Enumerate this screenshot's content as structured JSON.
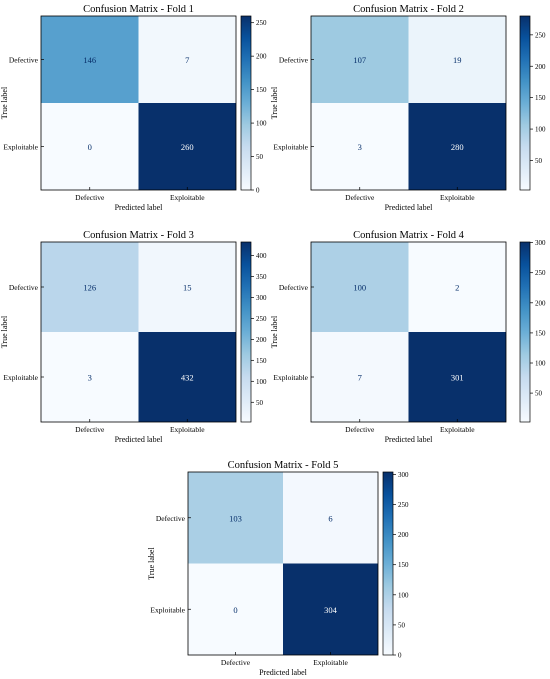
{
  "chart_data": [
    {
      "type": "heatmap",
      "title": "Confusion Matrix - Fold 1",
      "xlabel": "Predicted label",
      "ylabel": "True label",
      "x_categories": [
        "Defective",
        "Exploitable"
      ],
      "y_categories": [
        "Defective",
        "Exploitable"
      ],
      "values": [
        [
          146,
          7
        ],
        [
          0,
          260
        ]
      ],
      "colorbar": {
        "range": [
          0,
          260
        ],
        "ticks": [
          0,
          50,
          100,
          150,
          200,
          250
        ]
      }
    },
    {
      "type": "heatmap",
      "title": "Confusion Matrix - Fold 2",
      "xlabel": "Predicted label",
      "ylabel": "True label",
      "x_categories": [
        "Defective",
        "Exploitable"
      ],
      "y_categories": [
        "Defective",
        "Exploitable"
      ],
      "values": [
        [
          107,
          19
        ],
        [
          3,
          280
        ]
      ],
      "colorbar": {
        "range": [
          3,
          280
        ],
        "ticks": [
          50,
          100,
          150,
          200,
          250
        ]
      }
    },
    {
      "type": "heatmap",
      "title": "Confusion Matrix - Fold 3",
      "xlabel": "Predicted label",
      "ylabel": "True label",
      "x_categories": [
        "Defective",
        "Exploitable"
      ],
      "y_categories": [
        "Defective",
        "Exploitable"
      ],
      "values": [
        [
          126,
          15
        ],
        [
          3,
          432
        ]
      ],
      "colorbar": {
        "range": [
          3,
          432
        ],
        "ticks": [
          50,
          100,
          150,
          200,
          250,
          300,
          350,
          400
        ]
      }
    },
    {
      "type": "heatmap",
      "title": "Confusion Matrix - Fold 4",
      "xlabel": "Predicted label",
      "ylabel": "True label",
      "x_categories": [
        "Defective",
        "Exploitable"
      ],
      "y_categories": [
        "Defective",
        "Exploitable"
      ],
      "values": [
        [
          100,
          2
        ],
        [
          7,
          301
        ]
      ],
      "colorbar": {
        "range": [
          2,
          301
        ],
        "ticks": [
          50,
          100,
          150,
          200,
          250,
          300
        ]
      }
    },
    {
      "type": "heatmap",
      "title": "Confusion Matrix - Fold 5",
      "xlabel": "Predicted label",
      "ylabel": "True label",
      "x_categories": [
        "Defective",
        "Exploitable"
      ],
      "y_categories": [
        "Defective",
        "Exploitable"
      ],
      "values": [
        [
          103,
          6
        ],
        [
          0,
          304
        ]
      ],
      "colorbar": {
        "range": [
          0,
          304
        ],
        "ticks": [
          0,
          50,
          100,
          150,
          200,
          250,
          300
        ]
      }
    }
  ],
  "colormap": "Blues"
}
